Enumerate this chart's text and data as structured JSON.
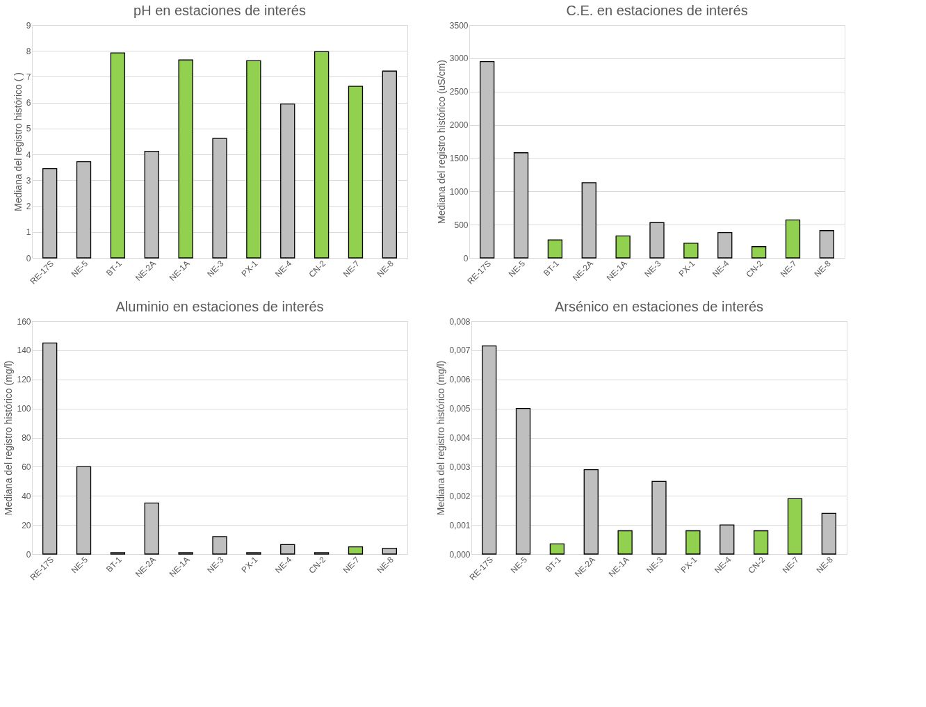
{
  "chart_data": [
    {
      "type": "bar",
      "title": "pH en estaciones de interés",
      "ylabel": "Mediana del registro histórico ( )",
      "categories": [
        "RE-17S",
        "NE-5",
        "BT-1",
        "NE-2A",
        "NE-1A",
        "NE-3",
        "PX-1",
        "NE-4",
        "CN-2",
        "NE-7",
        "NE-8"
      ],
      "values": [
        3.45,
        3.72,
        7.92,
        4.12,
        7.65,
        4.62,
        7.62,
        5.95,
        7.97,
        6.63,
        7.22
      ],
      "colors": [
        "#bfbfbf",
        "#bfbfbf",
        "#92d050",
        "#bfbfbf",
        "#92d050",
        "#bfbfbf",
        "#92d050",
        "#bfbfbf",
        "#92d050",
        "#92d050",
        "#bfbfbf"
      ],
      "ylim": [
        0,
        9
      ],
      "yticks": [
        0,
        1,
        2,
        3,
        4,
        5,
        6,
        7,
        8,
        9
      ],
      "grid": "y"
    },
    {
      "type": "bar",
      "title": "C.E. en estaciones de interés",
      "ylabel": "Mediana del registro histórico (uS/cm)",
      "categories": [
        "RE-17S",
        "NE-5",
        "BT-1",
        "NE-2A",
        "NE-1A",
        "NE-3",
        "PX-1",
        "NE-4",
        "CN-2",
        "NE-7",
        "NE-8"
      ],
      "values": [
        2950,
        1580,
        270,
        1130,
        330,
        530,
        220,
        380,
        170,
        570,
        410
      ],
      "colors": [
        "#bfbfbf",
        "#bfbfbf",
        "#92d050",
        "#bfbfbf",
        "#92d050",
        "#bfbfbf",
        "#92d050",
        "#bfbfbf",
        "#92d050",
        "#92d050",
        "#bfbfbf"
      ],
      "ylim": [
        0,
        3500
      ],
      "yticks": [
        0,
        500,
        1000,
        1500,
        2000,
        2500,
        3000,
        3500
      ],
      "grid": "y"
    },
    {
      "type": "bar",
      "title": "Aluminio en estaciones de interés",
      "ylabel": "Mediana del registro histórico (mg/l)",
      "categories": [
        "RE-17S",
        "NE-5",
        "BT-1",
        "NE-2A",
        "NE-1A",
        "NE-3",
        "PX-1",
        "NE-4",
        "CN-2",
        "NE-7",
        "NE-8"
      ],
      "values": [
        145,
        60,
        1,
        35,
        1,
        12,
        1,
        6.5,
        1,
        5,
        4
      ],
      "colors": [
        "#bfbfbf",
        "#bfbfbf",
        "#bfbfbf",
        "#bfbfbf",
        "#bfbfbf",
        "#bfbfbf",
        "#bfbfbf",
        "#bfbfbf",
        "#bfbfbf",
        "#92d050",
        "#bfbfbf"
      ],
      "ylim": [
        0,
        160
      ],
      "yticks": [
        0,
        20,
        40,
        60,
        80,
        100,
        120,
        140,
        160
      ],
      "grid": "y"
    },
    {
      "type": "bar",
      "title": "Arsénico en estaciones de interés",
      "ylabel": "Mediana del registro histórico (mg/l)",
      "categories": [
        "RE-17S",
        "NE-5",
        "BT-1",
        "NE-2A",
        "NE-1A",
        "NE-3",
        "PX-1",
        "NE-4",
        "CN-2",
        "NE-7",
        "NE-8"
      ],
      "values": [
        0.00715,
        0.005,
        0.00035,
        0.0029,
        0.0008,
        0.0025,
        0.0008,
        0.001,
        0.0008,
        0.0019,
        0.0014
      ],
      "colors": [
        "#bfbfbf",
        "#bfbfbf",
        "#92d050",
        "#bfbfbf",
        "#92d050",
        "#bfbfbf",
        "#92d050",
        "#bfbfbf",
        "#92d050",
        "#92d050",
        "#bfbfbf"
      ],
      "ylim": [
        0,
        0.008
      ],
      "yticks": [
        {
          "value": 0,
          "label": "0,000"
        },
        {
          "value": 0.001,
          "label": "0,001"
        },
        {
          "value": 0.002,
          "label": "0,002"
        },
        {
          "value": 0.003,
          "label": "0,003"
        },
        {
          "value": 0.004,
          "label": "0,004"
        },
        {
          "value": 0.005,
          "label": "0,005"
        },
        {
          "value": 0.006,
          "label": "0,006"
        },
        {
          "value": 0.007,
          "label": "0,007"
        },
        {
          "value": 0.008,
          "label": "0,008"
        }
      ],
      "grid": "y"
    }
  ]
}
